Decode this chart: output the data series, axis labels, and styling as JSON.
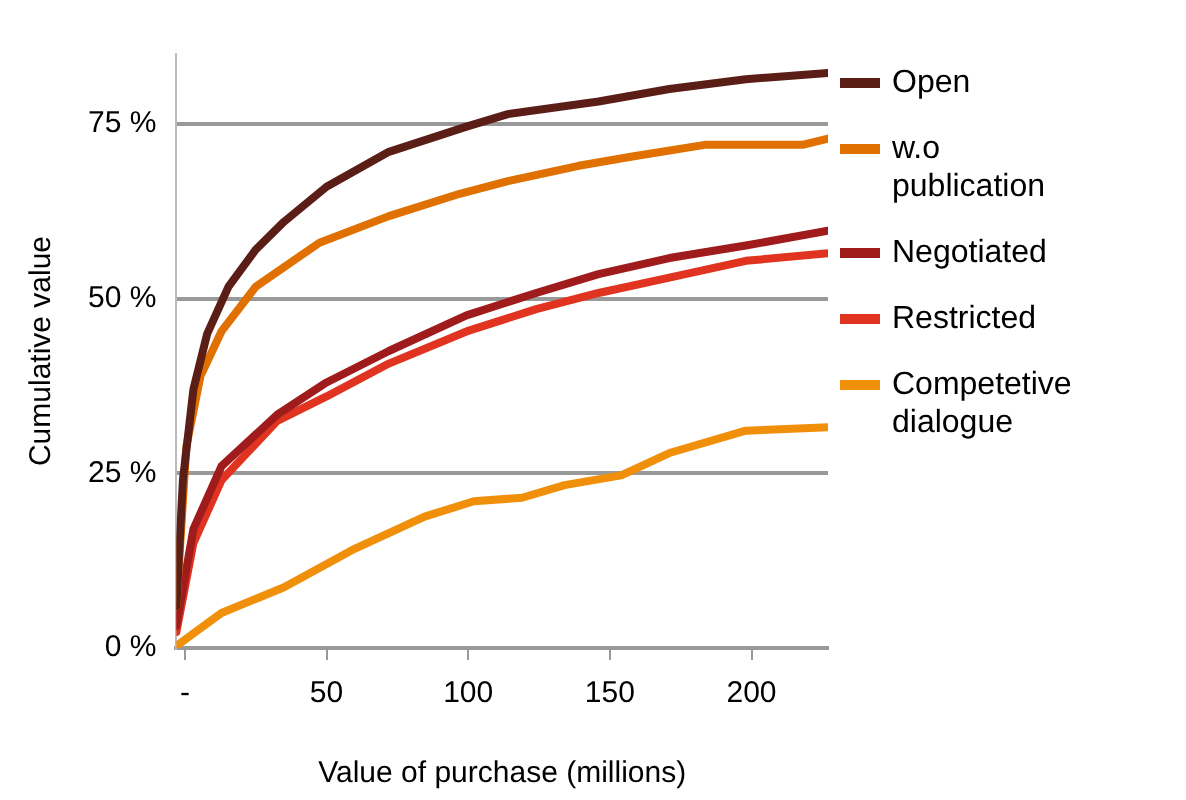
{
  "chart_data": {
    "type": "line",
    "xlabel": "Value of purchase (millions)",
    "ylabel": "Cumulative value",
    "xlim": [
      -3,
      227
    ],
    "xticks": [
      {
        "value": 0,
        "label": "-"
      },
      50,
      100,
      150,
      200
    ],
    "ylim": [
      0,
      85
    ],
    "yticks": [
      {
        "value": 0,
        "label": "0 %"
      },
      {
        "value": 25,
        "label": "25 %"
      },
      {
        "value": 50,
        "label": "50 %"
      },
      {
        "value": 75,
        "label": "75 %"
      }
    ],
    "grid": "y",
    "legend": "right",
    "marker": "none",
    "line_style": "solid",
    "series": [
      {
        "name": "Open",
        "color": "#5a1e17",
        "x": [
          -3,
          -0.7,
          3,
          7.9,
          15.4,
          25,
          35,
          50,
          72,
          99.4,
          114,
          146,
          171,
          198,
          227
        ],
        "values": [
          6,
          24,
          37,
          45,
          51.7,
          57,
          61,
          66,
          71,
          74.6,
          76.4,
          78.2,
          80,
          81.4,
          82.3
        ]
      },
      {
        "name": "w.o publication",
        "color": "#e07000",
        "x": [
          -3,
          0.5,
          5.5,
          12.9,
          25,
          47.5,
          72,
          97,
          114,
          139,
          159,
          183.5,
          218,
          227
        ],
        "values": [
          6,
          28.8,
          38.9,
          45.3,
          51.7,
          58,
          61.8,
          65,
          66.8,
          69,
          70.4,
          72,
          72,
          72.9
        ]
      },
      {
        "name": "Negotiated",
        "color": "#a01c1c",
        "x": [
          -3,
          3,
          12.9,
          32.6,
          50,
          72,
          99.4,
          124,
          146,
          171,
          198,
          227
        ],
        "values": [
          3.2,
          17,
          26,
          33.4,
          38,
          42.5,
          47.6,
          50.8,
          53.5,
          55.8,
          57.6,
          59.7
        ]
      },
      {
        "name": "Restricted",
        "color": "#e03420",
        "x": [
          -3,
          3,
          12.9,
          32.6,
          50,
          72,
          99.4,
          124,
          146,
          171,
          198,
          227
        ],
        "values": [
          2.3,
          15,
          24,
          32.5,
          36,
          40.7,
          45.3,
          48.5,
          50.8,
          53,
          55.4,
          56.5
        ]
      },
      {
        "name": "Competetive dialogue",
        "color": "#f0900a",
        "x": [
          -3,
          12.9,
          35,
          59.9,
          84.6,
          102,
          119,
          134,
          154,
          171,
          198,
          227
        ],
        "values": [
          0.3,
          5,
          8.7,
          14.2,
          18.8,
          21,
          21.5,
          23.3,
          24.7,
          27.9,
          31.1,
          31.6
        ]
      }
    ]
  }
}
